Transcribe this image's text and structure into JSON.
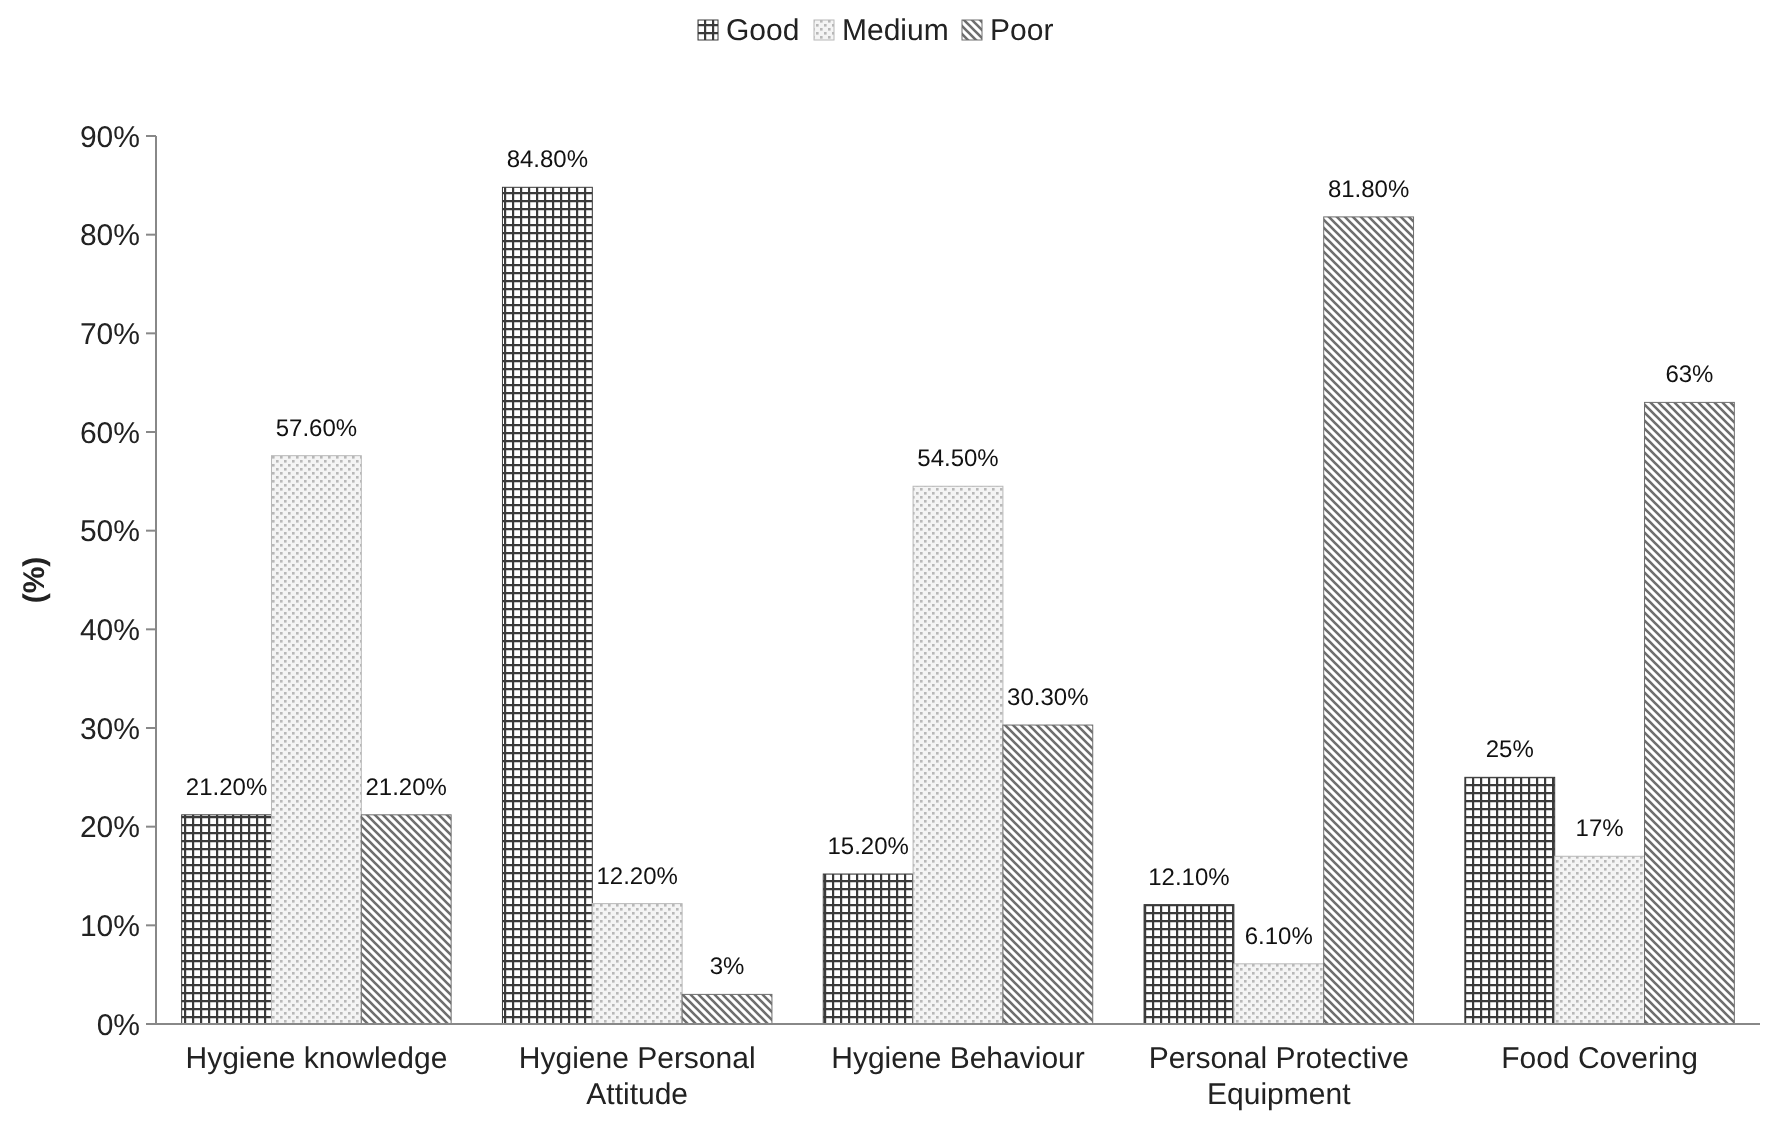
{
  "chart_data": {
    "type": "bar",
    "ylabel": "(%)",
    "categories": [
      "Hygiene knowledge",
      "Hygiene Personal Attitude",
      "Hygiene Behaviour",
      "Personal Protective Equipment",
      "Food Covering"
    ],
    "series": [
      {
        "name": "Good",
        "color": "#3a3a3a",
        "values": [
          21.2,
          84.8,
          15.2,
          12.1,
          25
        ],
        "value_labels": [
          "21.20%",
          "84.80%",
          "15.20%",
          "12.10%",
          "25%"
        ]
      },
      {
        "name": "Medium",
        "color": "#b8b8b8",
        "values": [
          57.6,
          12.2,
          54.5,
          6.1,
          17
        ],
        "value_labels": [
          "57.60%",
          "12.20%",
          "54.50%",
          "6.10%",
          "17%"
        ]
      },
      {
        "name": "Poor",
        "color": "#6e6e6e",
        "values": [
          21.2,
          3,
          30.3,
          81.8,
          63
        ],
        "value_labels": [
          "21.20%",
          "3%",
          "30.30%",
          "81.80%",
          "63%"
        ]
      }
    ],
    "ylim": [
      0,
      90
    ],
    "yticks": [
      {
        "value": 0,
        "label": "0%"
      },
      {
        "value": 10,
        "label": "10%"
      },
      {
        "value": 20,
        "label": "20%"
      },
      {
        "value": 30,
        "label": "30%"
      },
      {
        "value": 40,
        "label": "40%"
      },
      {
        "value": 50,
        "label": "50%"
      },
      {
        "value": 60,
        "label": "60%"
      },
      {
        "value": 70,
        "label": "70%"
      },
      {
        "value": 80,
        "label": "80%"
      },
      {
        "value": 90,
        "label": "90%"
      }
    ],
    "grid": false,
    "legend": "top"
  }
}
